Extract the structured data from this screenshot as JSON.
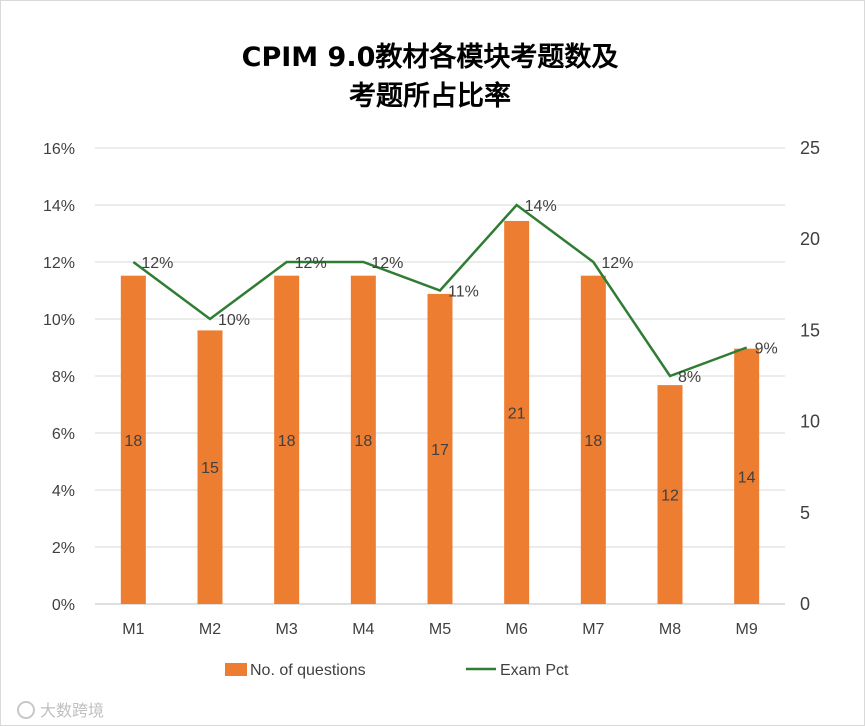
{
  "chart_data": {
    "type": "bar",
    "title_lines": [
      "CPIM 9.0教材各模块考题数及",
      "考题所占比率"
    ],
    "categories": [
      "M1",
      "M2",
      "M3",
      "M4",
      "M5",
      "M6",
      "M7",
      "M8",
      "M9"
    ],
    "series": [
      {
        "name": "No. of questions",
        "type": "bar",
        "axis": "right",
        "values": [
          18,
          15,
          18,
          18,
          17,
          21,
          18,
          12,
          14
        ],
        "labels": [
          "18",
          "15",
          "18",
          "18",
          "17",
          "21",
          "18",
          "12",
          "14"
        ],
        "color": "#ed7d31"
      },
      {
        "name": "Exam Pct",
        "type": "line",
        "axis": "left",
        "values": [
          0.12,
          0.1,
          0.12,
          0.12,
          0.11,
          0.14,
          0.12,
          0.08,
          0.09
        ],
        "labels": [
          "12%",
          "10%",
          "12%",
          "12%",
          "11%",
          "14%",
          "12%",
          "8%",
          "9%"
        ],
        "color": "#2e7d32"
      }
    ],
    "left_axis": {
      "ylim": [
        0,
        0.16
      ],
      "ticks": [
        0,
        0.02,
        0.04,
        0.06,
        0.08,
        0.1,
        0.12,
        0.14,
        0.16
      ],
      "tick_labels": [
        "0%",
        "2%",
        "4%",
        "6%",
        "8%",
        "10%",
        "12%",
        "14%",
        "16%"
      ]
    },
    "right_axis": {
      "ylim": [
        0,
        25
      ],
      "ticks": [
        0,
        5,
        10,
        15,
        20,
        25
      ],
      "tick_labels": [
        "0",
        "5",
        "10",
        "15",
        "20",
        "25"
      ]
    },
    "grid": true,
    "legend_position": "bottom",
    "legend": [
      "No. of questions",
      "Exam Pct"
    ]
  },
  "watermark": {
    "text": "大数跨境"
  },
  "colors": {
    "bar": "#ed7d31",
    "line": "#2e7d32",
    "grid": "#d9d9d9",
    "axis_text": "#404040"
  }
}
